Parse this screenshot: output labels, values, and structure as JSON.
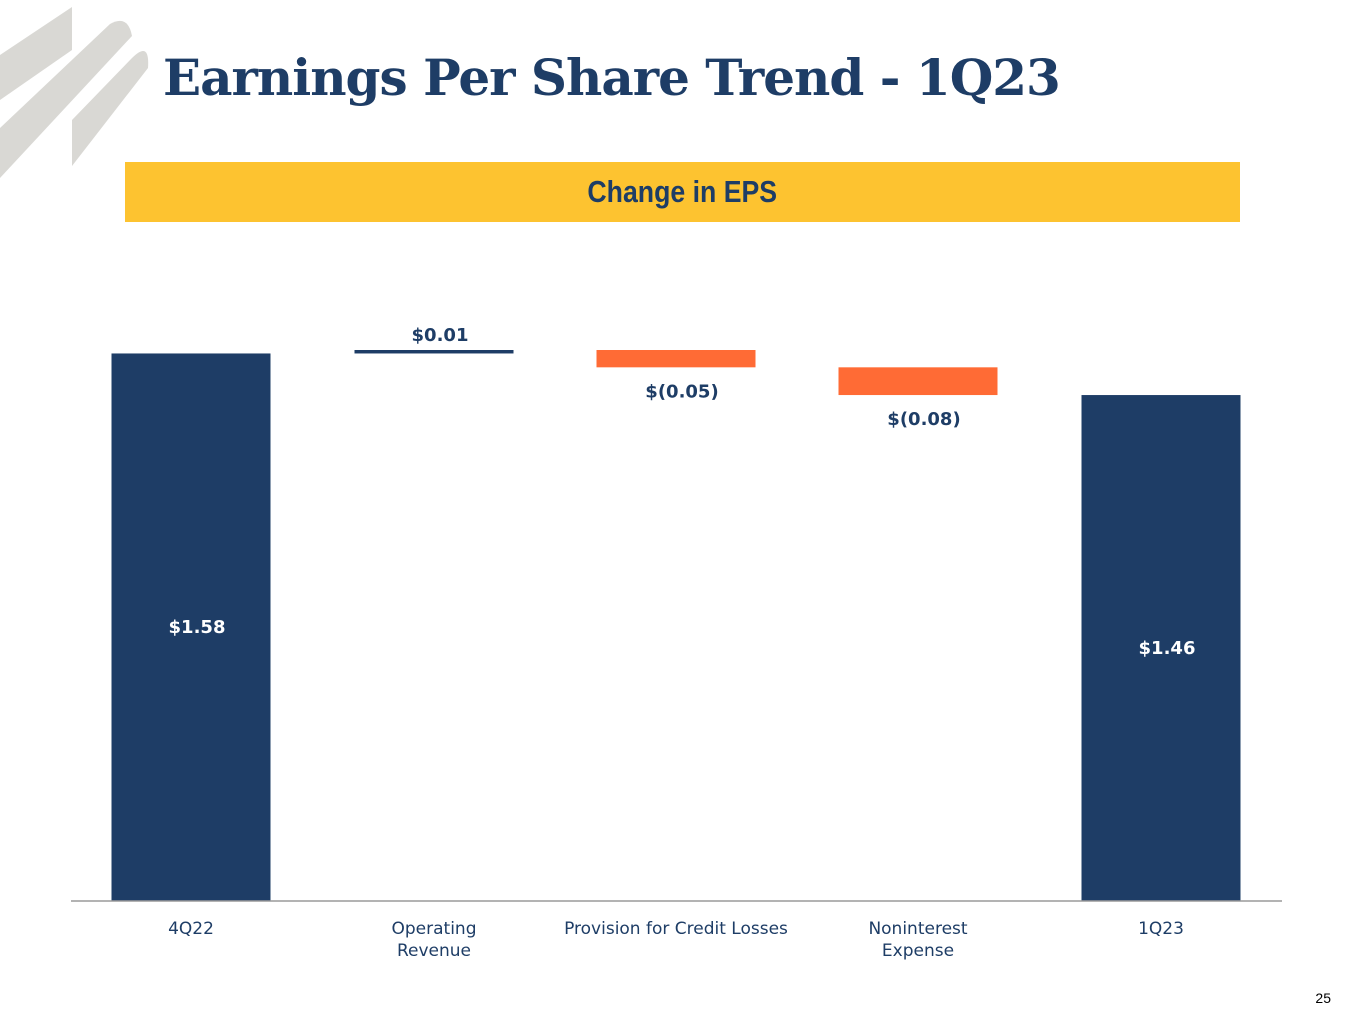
{
  "title": "Earnings Per Share Trend - 1Q23",
  "subtitle": "Change in EPS",
  "page_number": "25",
  "colors": {
    "navy": "#1e3d66",
    "orange": "#ff6b35",
    "gold": "#fdc330",
    "logo_gray": "#d9d8d4",
    "axis": "#9a9a9a"
  },
  "chart_data": {
    "type": "waterfall",
    "title": "Change in EPS",
    "ylim": [
      0,
      1.59
    ],
    "items": [
      {
        "category": [
          "4Q22"
        ],
        "kind": "total",
        "value": 1.58,
        "label": "$1.58"
      },
      {
        "category": [
          "Operating",
          "Revenue"
        ],
        "kind": "change",
        "value": 0.01,
        "label": "$0.01"
      },
      {
        "category": [
          "Provision for Credit Losses"
        ],
        "kind": "change",
        "value": -0.05,
        "label": "$(0.05)"
      },
      {
        "category": [
          "Noninterest",
          "Expense"
        ],
        "kind": "change",
        "value": -0.08,
        "label": "$(0.08)"
      },
      {
        "category": [
          "1Q23"
        ],
        "kind": "total",
        "value": 1.46,
        "label": "$1.46"
      }
    ]
  }
}
